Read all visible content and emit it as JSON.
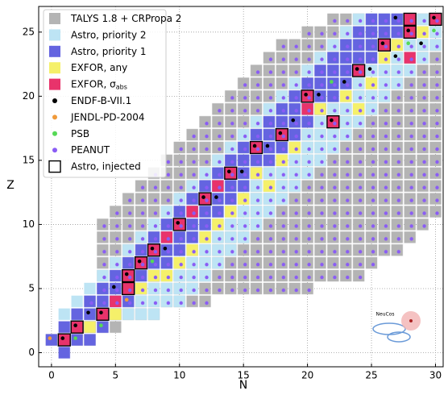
{
  "chart_data": {
    "type": "nuclide-chart",
    "xlabel": "N",
    "ylabel": "Z",
    "xlim": [
      -1,
      30.6
    ],
    "ylim": [
      -1.1,
      27
    ],
    "xticks": [
      0,
      5,
      10,
      15,
      20,
      25,
      30
    ],
    "yticks": [
      0,
      5,
      10,
      15,
      20,
      25
    ],
    "grid": true,
    "legend": "upper left",
    "logo_text": "NeuCos",
    "series": [
      {
        "name": "TALYS 1.8 + CRPropa 2",
        "kind": "range",
        "color": "#b4b4b4",
        "ranges": [
          [
            1,
            0,
            3
          ],
          [
            2,
            2,
            5
          ],
          [
            3,
            3,
            8
          ],
          [
            4,
            3,
            12
          ],
          [
            5,
            4,
            20
          ],
          [
            6,
            4,
            24
          ],
          [
            7,
            4,
            25
          ],
          [
            8,
            4,
            27
          ],
          [
            9,
            4,
            28
          ],
          [
            10,
            4,
            29
          ],
          [
            11,
            5,
            30
          ],
          [
            12,
            6,
            30
          ],
          [
            13,
            7,
            30
          ],
          [
            14,
            8,
            30
          ],
          [
            15,
            9,
            30
          ],
          [
            16,
            10,
            30
          ],
          [
            17,
            11,
            30
          ],
          [
            18,
            12,
            30
          ],
          [
            19,
            13,
            30
          ],
          [
            20,
            14,
            30
          ],
          [
            21,
            15,
            30
          ],
          [
            22,
            16,
            30
          ],
          [
            23,
            17,
            30
          ],
          [
            24,
            18,
            30
          ],
          [
            25,
            20,
            30
          ],
          [
            26,
            22,
            30
          ]
        ]
      },
      {
        "name": "Astro, priority 2",
        "kind": "range",
        "color": "#bde4f4",
        "ranges": [
          [
            3,
            1,
            8
          ],
          [
            4,
            2,
            10
          ],
          [
            5,
            3,
            11
          ],
          [
            6,
            4,
            12
          ],
          [
            7,
            5,
            13
          ],
          [
            8,
            6,
            14
          ],
          [
            9,
            7,
            15
          ],
          [
            10,
            8,
            16
          ],
          [
            11,
            9,
            17
          ],
          [
            12,
            10,
            18
          ],
          [
            13,
            11,
            19
          ],
          [
            14,
            12,
            20
          ],
          [
            15,
            13,
            21
          ],
          [
            16,
            14,
            22
          ],
          [
            17,
            15,
            23
          ],
          [
            18,
            16,
            24
          ],
          [
            19,
            17,
            25
          ],
          [
            20,
            18,
            26
          ],
          [
            21,
            19,
            27
          ],
          [
            22,
            20,
            28
          ],
          [
            23,
            21,
            29
          ],
          [
            24,
            22,
            30
          ],
          [
            25,
            23,
            30
          ],
          [
            26,
            24,
            30
          ]
        ]
      },
      {
        "name": "Astro, priority 1",
        "kind": "range",
        "color": "#6464e0",
        "ranges": [
          [
            0,
            1,
            1
          ],
          [
            1,
            0,
            3
          ],
          [
            2,
            1,
            4
          ],
          [
            3,
            2,
            5
          ],
          [
            4,
            3,
            6
          ],
          [
            5,
            4,
            7
          ],
          [
            6,
            5,
            8
          ],
          [
            7,
            6,
            9
          ],
          [
            8,
            7,
            10
          ],
          [
            9,
            8,
            11
          ],
          [
            10,
            9,
            12
          ],
          [
            11,
            10,
            13
          ],
          [
            12,
            11,
            14
          ],
          [
            13,
            12,
            15
          ],
          [
            14,
            13,
            16
          ],
          [
            15,
            14,
            17
          ],
          [
            16,
            15,
            18
          ],
          [
            17,
            16,
            19
          ],
          [
            18,
            17,
            20
          ],
          [
            19,
            18,
            21
          ],
          [
            20,
            19,
            22
          ],
          [
            21,
            20,
            23
          ],
          [
            22,
            21,
            24
          ],
          [
            23,
            22,
            25
          ],
          [
            24,
            23,
            26
          ],
          [
            25,
            24,
            27
          ],
          [
            26,
            25,
            28
          ]
        ]
      },
      {
        "name": "EXFOR, any",
        "kind": "cells",
        "color": "#f5f06a",
        "cells": [
          [
            3,
            2
          ],
          [
            5,
            3
          ],
          [
            7,
            5
          ],
          [
            8,
            6
          ],
          [
            9,
            6
          ],
          [
            10,
            7
          ],
          [
            11,
            8
          ],
          [
            12,
            9
          ],
          [
            13,
            10
          ],
          [
            14,
            11
          ],
          [
            15,
            12
          ],
          [
            17,
            13
          ],
          [
            16,
            14
          ],
          [
            18,
            15
          ],
          [
            19,
            16
          ],
          [
            24,
            19
          ],
          [
            21,
            19
          ],
          [
            23,
            20
          ],
          [
            25,
            21
          ],
          [
            26,
            23
          ],
          [
            27,
            24
          ],
          [
            29,
            25
          ]
        ]
      },
      {
        "name": "EXFOR, σ",
        "name_sub": "abs",
        "kind": "cells",
        "color": "#e8336b",
        "cells": [
          [
            1,
            1
          ],
          [
            2,
            2
          ],
          [
            4,
            3
          ],
          [
            5,
            4
          ],
          [
            6,
            5
          ],
          [
            6,
            6
          ],
          [
            7,
            7
          ],
          [
            8,
            8
          ],
          [
            9,
            9
          ],
          [
            10,
            10
          ],
          [
            11,
            11
          ],
          [
            12,
            12
          ],
          [
            13,
            13
          ],
          [
            14,
            14
          ],
          [
            16,
            16
          ],
          [
            18,
            17
          ],
          [
            20,
            20
          ],
          [
            20,
            19
          ],
          [
            22,
            18
          ],
          [
            24,
            22
          ],
          [
            26,
            24
          ],
          [
            28,
            25
          ],
          [
            28,
            23
          ],
          [
            28,
            26
          ],
          [
            30,
            26
          ]
        ]
      },
      {
        "name": "ENDF-B-VII.1",
        "kind": "dots",
        "color": "#000000",
        "cells": [
          [
            1,
            1
          ],
          [
            2,
            2
          ],
          [
            3,
            3
          ],
          [
            4,
            3
          ],
          [
            5,
            5
          ],
          [
            6,
            6
          ],
          [
            7,
            7
          ],
          [
            8,
            8
          ],
          [
            9,
            8
          ],
          [
            10,
            10
          ],
          [
            12,
            12
          ],
          [
            13,
            12
          ],
          [
            14,
            14
          ],
          [
            15,
            14
          ],
          [
            16,
            16
          ],
          [
            17,
            16
          ],
          [
            18,
            17
          ],
          [
            19,
            18
          ],
          [
            20,
            20
          ],
          [
            21,
            20
          ],
          [
            22,
            18
          ],
          [
            23,
            21
          ],
          [
            24,
            22
          ],
          [
            25,
            22
          ],
          [
            26,
            24
          ],
          [
            27,
            23
          ],
          [
            28,
            25
          ],
          [
            29,
            24
          ],
          [
            27,
            26
          ],
          [
            30,
            26
          ]
        ]
      },
      {
        "name": "JENDL-PD-2004",
        "kind": "dots",
        "color": "#f09a3a",
        "cells": [
          [
            0,
            1
          ],
          [
            6,
            4
          ]
        ]
      },
      {
        "name": "PSB",
        "kind": "dots",
        "color": "#55d955",
        "cells": [
          [
            2,
            1
          ],
          [
            4,
            2
          ],
          [
            8,
            7
          ],
          [
            22,
            21
          ],
          [
            28,
            24
          ],
          [
            30,
            25
          ]
        ]
      },
      {
        "name": "PEANUT",
        "kind": "dot-range",
        "color": "#8a5cf5",
        "ranges": [
          [
            4,
            3,
            12
          ],
          [
            5,
            4,
            20
          ],
          [
            6,
            4,
            24
          ],
          [
            7,
            4,
            25
          ],
          [
            8,
            4,
            27
          ],
          [
            9,
            4,
            28
          ],
          [
            10,
            4,
            29
          ],
          [
            11,
            5,
            30
          ],
          [
            12,
            6,
            30
          ],
          [
            13,
            7,
            30
          ],
          [
            14,
            8,
            30
          ],
          [
            15,
            9,
            30
          ],
          [
            16,
            10,
            30
          ],
          [
            17,
            11,
            30
          ],
          [
            18,
            12,
            30
          ],
          [
            19,
            13,
            30
          ],
          [
            20,
            14,
            30
          ],
          [
            21,
            15,
            30
          ],
          [
            22,
            16,
            30
          ],
          [
            23,
            17,
            30
          ],
          [
            24,
            18,
            30
          ],
          [
            25,
            20,
            30
          ],
          [
            26,
            22,
            30
          ]
        ]
      },
      {
        "name": "Astro, injected",
        "kind": "outline",
        "color": "#000000",
        "cells": [
          [
            1,
            1
          ],
          [
            2,
            2
          ],
          [
            4,
            3
          ],
          [
            6,
            5
          ],
          [
            6,
            6
          ],
          [
            7,
            7
          ],
          [
            8,
            8
          ],
          [
            10,
            10
          ],
          [
            12,
            12
          ],
          [
            14,
            14
          ],
          [
            16,
            16
          ],
          [
            18,
            17
          ],
          [
            20,
            20
          ],
          [
            22,
            18
          ],
          [
            24,
            22
          ],
          [
            26,
            24
          ],
          [
            28,
            25
          ],
          [
            28,
            26
          ],
          [
            30,
            26
          ]
        ]
      }
    ]
  }
}
